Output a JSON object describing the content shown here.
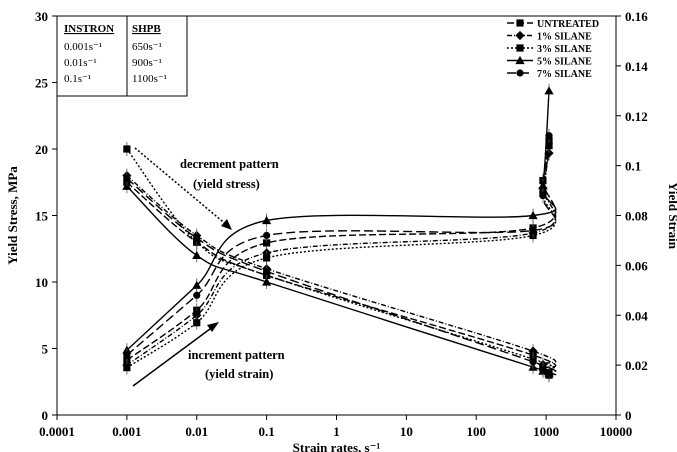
{
  "chart_data": {
    "type": "line",
    "title": "",
    "xlabel": "Strain rates, s⁻¹",
    "ylabel": "Yield Stress, MPa",
    "y2label": "Yield Strain",
    "xscale": "log",
    "xlim": [
      0.0001,
      10000
    ],
    "ylim": [
      0,
      30
    ],
    "y2lim": [
      0,
      0.16
    ],
    "x_ticks": [
      0.0001,
      0.001,
      0.01,
      0.1,
      1,
      10,
      100,
      1000,
      10000
    ],
    "x_tick_labels": [
      "0.0001",
      "0.001",
      "0.01",
      "0.1",
      "1",
      "10",
      "100",
      "1000",
      "10000"
    ],
    "y_ticks": [
      0,
      5,
      10,
      15,
      20,
      25,
      30
    ],
    "y_tick_labels": [
      "0",
      "5",
      "10",
      "15",
      "20",
      "25",
      "30"
    ],
    "y2_ticks": [
      0,
      0.02,
      0.04,
      0.06,
      0.08,
      0.1,
      0.12,
      0.14,
      0.16
    ],
    "y2_tick_labels": [
      "0",
      "0.02",
      "0.04",
      "0.06",
      "0.08",
      "0.1",
      "0.12",
      "0.14",
      "0.16"
    ],
    "legend_position": "top-right",
    "x": [
      0.001,
      0.01,
      0.1,
      650,
      900,
      1100
    ],
    "stress_series": [
      {
        "name": "UNTREATED",
        "values": [
          17.5,
          13.0,
          10.5,
          4.5,
          3.5,
          3.2
        ]
      },
      {
        "name": "1% SILANE",
        "values": [
          18.0,
          13.5,
          11.0,
          4.8,
          3.8,
          3.0
        ]
      },
      {
        "name": "3% SILANE",
        "values": [
          20.0,
          13.0,
          10.5,
          4.2,
          3.6,
          3.0
        ]
      },
      {
        "name": "5% SILANE",
        "values": [
          17.2,
          12.0,
          10.0,
          3.6,
          3.3,
          3.1
        ]
      },
      {
        "name": "7% SILANE",
        "values": [
          17.8,
          13.3,
          10.8,
          4.0,
          3.4,
          3.1
        ]
      }
    ],
    "strain_series": [
      {
        "name": "UNTREATED",
        "values": [
          0.022,
          0.042,
          0.069,
          0.075,
          0.094,
          0.11
        ]
      },
      {
        "name": "1% SILANE",
        "values": [
          0.02,
          0.04,
          0.065,
          0.073,
          0.091,
          0.105
        ]
      },
      {
        "name": "3% SILANE",
        "values": [
          0.019,
          0.037,
          0.063,
          0.072,
          0.089,
          0.108
        ]
      },
      {
        "name": "5% SILANE",
        "values": [
          0.026,
          0.052,
          0.078,
          0.08,
          0.092,
          0.13
        ]
      },
      {
        "name": "7% SILANE",
        "values": [
          0.024,
          0.048,
          0.072,
          0.074,
          0.088,
          0.112
        ]
      }
    ],
    "inset_table": {
      "headers": [
        "INSTRON",
        "SHPB"
      ],
      "rows": [
        [
          "0.001s⁻¹",
          "650s⁻¹"
        ],
        [
          "0.01s⁻¹",
          "900s⁻¹"
        ],
        [
          "0.1s⁻¹",
          "1100s⁻¹"
        ]
      ]
    },
    "annotations": {
      "decrement_line1": "decrement pattern",
      "decrement_line2": "(yield stress)",
      "increment_line1": "increment pattern",
      "increment_line2": "(yield strain)"
    }
  }
}
